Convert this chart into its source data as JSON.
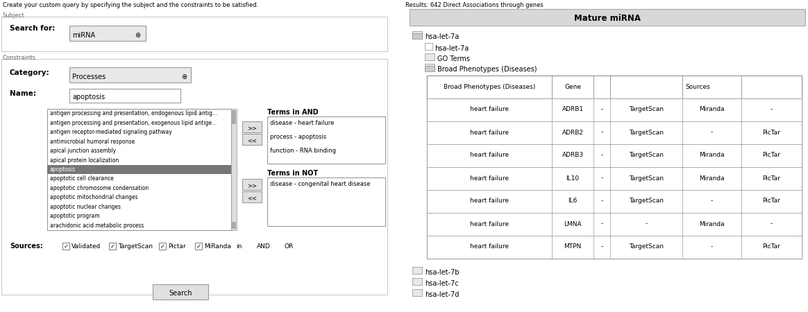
{
  "bg_color": "#ffffff",
  "title_top": "Create your custom query by specifying the subject and the constraints to be satisfied.",
  "subject_label": "Subject",
  "search_for_label": "Search for:",
  "search_for_value": "miRNA",
  "constraints_label": "Constraints",
  "category_label": "Category:",
  "category_value": "Processes",
  "name_label": "Name:",
  "name_value": "apoptosis",
  "list_items": [
    "antigen processing and presentation, endogenous lipid antig...",
    "antigen processing and presentation, exogenous lipid antige...",
    "antigen receptor-mediated signaling pathway",
    "antimicrobial humoral response",
    "apical junction assembly",
    "apical protein localization",
    "apoptosis",
    "apoptotic cell clearance",
    "apoptotic chromosome condensation",
    "apoptotic mitochondrial changes",
    "apoptotic nuclear changes",
    "apoptotic program",
    "arachidonic acid metabolic process"
  ],
  "selected_item_idx": 6,
  "terms_in_and_label": "Terms in AND",
  "terms_in_and": [
    "disease - heart failure",
    "process - apoptosis",
    "function - RNA binding"
  ],
  "terms_in_not_label": "Terms in NOT",
  "terms_in_not": [
    "disease - congenital heart disease"
  ],
  "sources_label": "Sources:",
  "sources_items": [
    "Validated",
    "TargetScan",
    "Pictar",
    "MiRanda"
  ],
  "sources_in_label": "in",
  "search_button": "Search",
  "right_results_title": "Results: 642 Direct Associations through genes",
  "right_header": "Mature miRNA",
  "table_rows": [
    [
      "heart failure",
      "ADRB1",
      "-",
      "TargetScan",
      "Miranda",
      "-"
    ],
    [
      "heart failure",
      "ADRB2",
      "-",
      "TargetScan",
      "-",
      "PicTar"
    ],
    [
      "heart failure",
      "ADRB3",
      "-",
      "TargetScan",
      "Miranda",
      "PicTar"
    ],
    [
      "heart failure",
      "IL10",
      "-",
      "TargetScan",
      "Miranda",
      "PicTar"
    ],
    [
      "heart failure",
      "IL6",
      "-",
      "TargetScan",
      "-",
      "PicTar"
    ],
    [
      "heart failure",
      "LMNA",
      "-",
      "-",
      "Miranda",
      "-"
    ],
    [
      "heart failure",
      "MTPN",
      "-",
      "TargetScan",
      "-",
      "PicTar"
    ]
  ],
  "bottom_tree_items": [
    "hsa-let-7b",
    "hsa-let-7c",
    "hsa-let-7d"
  ]
}
